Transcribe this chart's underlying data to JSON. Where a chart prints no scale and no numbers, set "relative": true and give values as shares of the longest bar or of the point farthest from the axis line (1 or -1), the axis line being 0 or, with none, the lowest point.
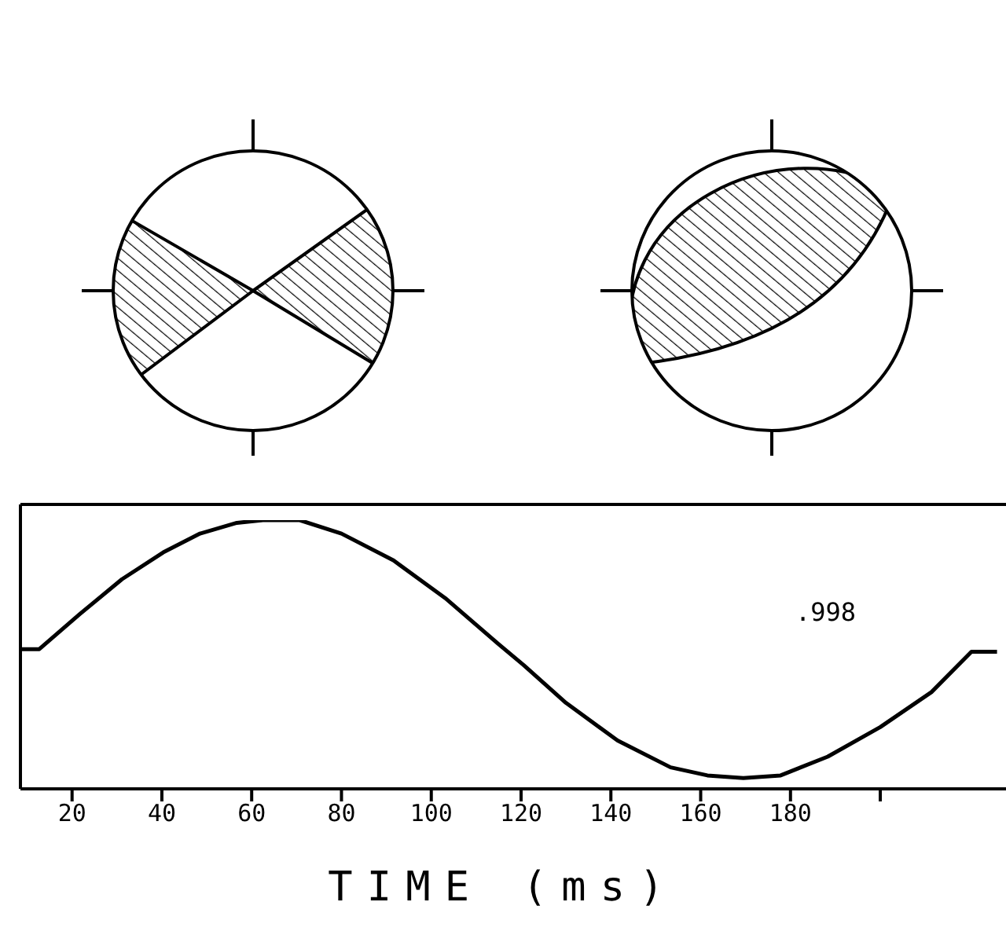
{
  "chart_data": {
    "type": "line",
    "relative": true,
    "xlabel": "TIME (ms)",
    "annotations": [
      ".998"
    ],
    "x": [
      8.5,
      12.7,
      21.7,
      31.1,
      40.3,
      48.5,
      56.7,
      62.5,
      70.7,
      80,
      91.6,
      103.1,
      114.9,
      120.6,
      130,
      141.5,
      153.3,
      161.5,
      169.5,
      177.8,
      188.3,
      200,
      211.4,
      220.3,
      226
    ],
    "series": [
      {
        "color": "#000000",
        "values": [
          0.52,
          0.52,
          0.65,
          0.78,
          0.88,
          0.95,
          0.99,
          1,
          1,
          0.95,
          0.85,
          0.71,
          0.54,
          0.46,
          0.32,
          0.18,
          0.08,
          0.05,
          0.04,
          0.05,
          0.12,
          0.23,
          0.36,
          0.51,
          0.51
        ]
      }
    ],
    "xlim": [
      8.5,
      228
    ],
    "xticks": [
      20,
      40,
      60,
      80,
      100,
      120,
      140,
      160,
      180,
      {
        "value": 200,
        "label": null
      }
    ],
    "grid": false,
    "legend": false,
    "marker": "none",
    "line_style": "solid"
  }
}
